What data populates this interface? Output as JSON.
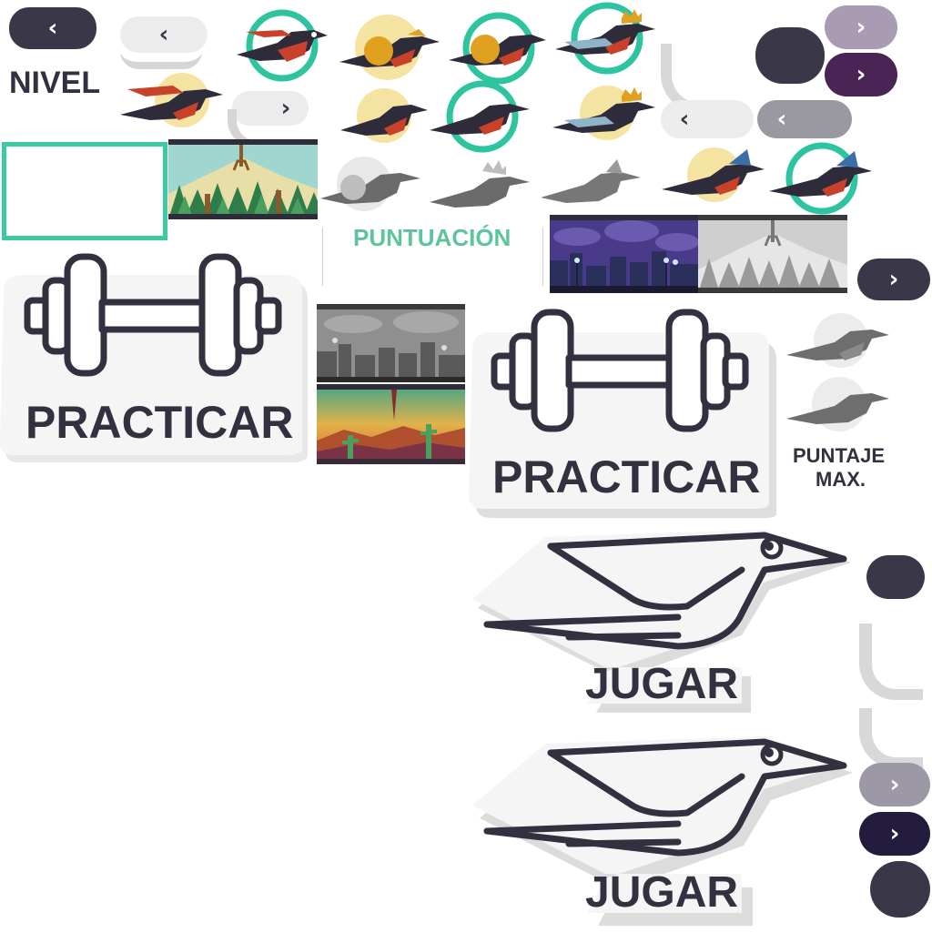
{
  "labels": {
    "nivel": "NIVEL",
    "puntuacion": "PUNTUACIÓN",
    "practicar_1": "PRACTICAR",
    "practicar_2": "PRACTICAR",
    "puntaje_line1": "PUNTAJE",
    "puntaje_line2": "MAX.",
    "jugar_1": "JUGAR",
    "jugar_2": "JUGAR"
  },
  "glyphs": {
    "chevron_left": "‹",
    "chevron_right": "›"
  },
  "colors": {
    "dark": "#3a3848",
    "teal": "#2ec4a0",
    "sun": "#f5e3a1",
    "bird_body": "#2e2c3a",
    "bird_belly": "#c8412b",
    "lavender": "#a89bb3",
    "purple": "#4b2456",
    "navy": "#231c3d",
    "puntuacion_text": "#5dc49c"
  },
  "icons": [
    "chevron-left-icon",
    "chevron-right-icon",
    "dumbbell-icon",
    "bird-outline-icon",
    "bird-sprite-icon"
  ]
}
